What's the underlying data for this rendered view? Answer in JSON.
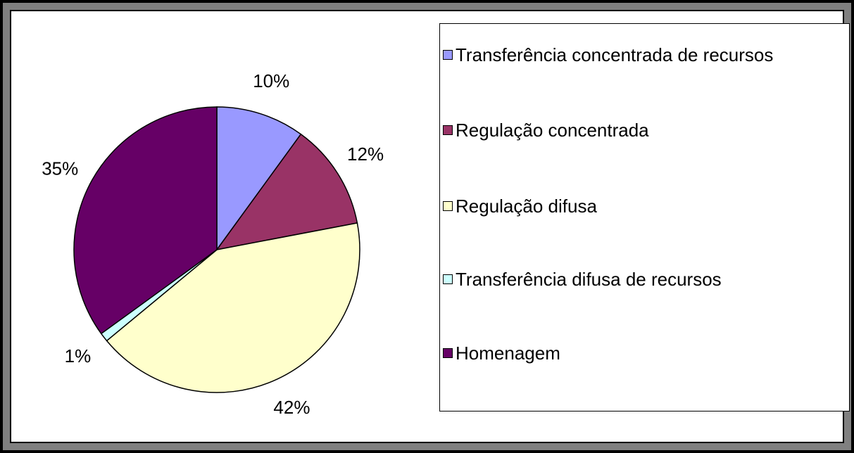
{
  "chart_data": {
    "type": "pie",
    "categories": [
      "Transferência concentrada de recursos",
      "Regulação concentrada",
      "Regulação difusa",
      "Transferência difusa de recursos",
      "Homenagem"
    ],
    "values": [
      10,
      12,
      42,
      1,
      35
    ],
    "value_labels": [
      "10%",
      "12%",
      "42%",
      "1%",
      "35%"
    ],
    "colors": [
      "#9999ff",
      "#993366",
      "#ffffcc",
      "#ccffff",
      "#660066"
    ],
    "legend": "right"
  }
}
